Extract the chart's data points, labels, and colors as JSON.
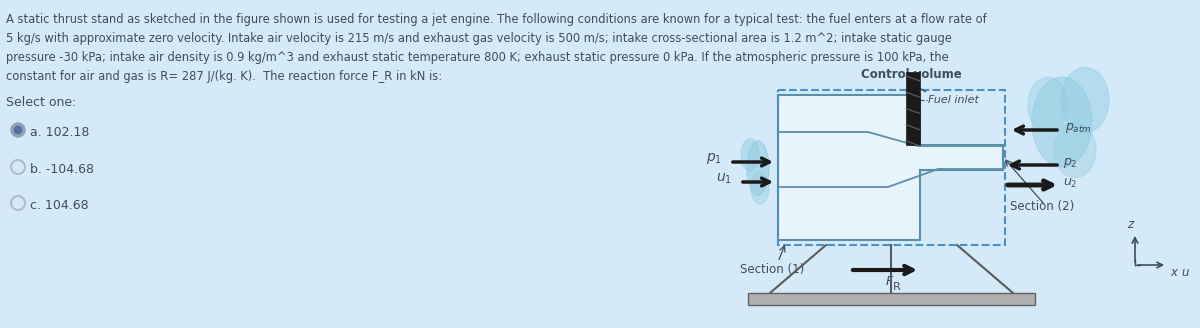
{
  "bg_color": "#d5eaf8",
  "text_color": "#3d4d5c",
  "arrow_color": "#1a1a1a",
  "dashed_color": "#4a90c8",
  "engine_fill": "#e8f4fb",
  "engine_stroke": "#5a8fa8",
  "support_color": "#606060",
  "base_color": "#a8a8a8",
  "fuel_color": "#1a1a1a",
  "lines": [
    "A static thrust stand as sketched in the figure shown is used for testing a jet engine. The following conditions are known for a typical test: the fuel enters at a flow rate of",
    "5 kg/s with approximate zero velocity. Intake air velocity is 215 m/s and exhaust gas velocity is 500 m/s; intake cross-sectional area is 1.2 m^2; intake static gauge",
    "pressure -30 kPa; intake air density is 0.9 kg/m^3 and exhaust static temperature 800 K; exhaust static pressure 0 kPa. If the atmospheric pressure is 100 kPa, the",
    "constant for air and gas is R= 287 J/(kg. K).  The reaction force F_R in kN is:"
  ],
  "select_one": "Select one:",
  "options": [
    "a. 102.18",
    "b. -104.68",
    "c. 104.68"
  ],
  "selected": 0,
  "figwidth": 12.0,
  "figheight": 3.28
}
